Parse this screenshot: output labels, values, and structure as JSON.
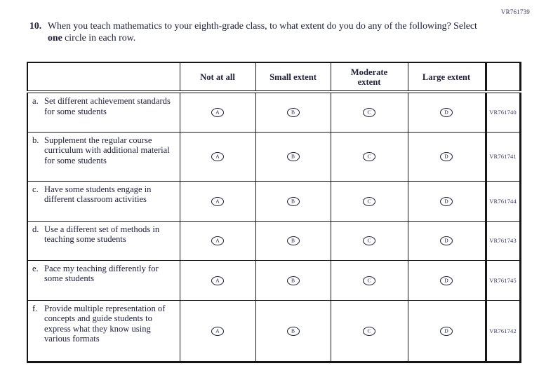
{
  "page": {
    "top_code": "VR761739",
    "question": {
      "number": "10.",
      "text_before_bold": "When you teach mathematics to your eighth-grade class, to what extent do you do any of the following? Select ",
      "bold_word": "one",
      "text_after_bold": " circle in each row."
    }
  },
  "table": {
    "columns": [
      "Not at all",
      "Small extent",
      "Moderate extent",
      "Large extent"
    ],
    "option_letters": [
      "A",
      "B",
      "C",
      "D"
    ],
    "rows": [
      {
        "letter": "a.",
        "label": "Set different achievement standards for some students",
        "code": "VR761740"
      },
      {
        "letter": "b.",
        "label": "Supplement the regular course curriculum with additional material for some students",
        "code": "VR761741"
      },
      {
        "letter": "c.",
        "label": "Have some students engage in different classroom activities",
        "code": "VR761744"
      },
      {
        "letter": "d.",
        "label": "Use a different set of methods in teaching some students",
        "code": "VR761743"
      },
      {
        "letter": "e.",
        "label": "Pace my teaching differently for some students",
        "code": "VR761745"
      },
      {
        "letter": "f.",
        "label": "Provide multiple representation of concepts and guide students to express what they know using various formats",
        "code": "VR761742"
      }
    ]
  },
  "colors": {
    "text": "#20203a",
    "code_text": "#39395e",
    "border": "#161616",
    "background": "#ffffff"
  }
}
